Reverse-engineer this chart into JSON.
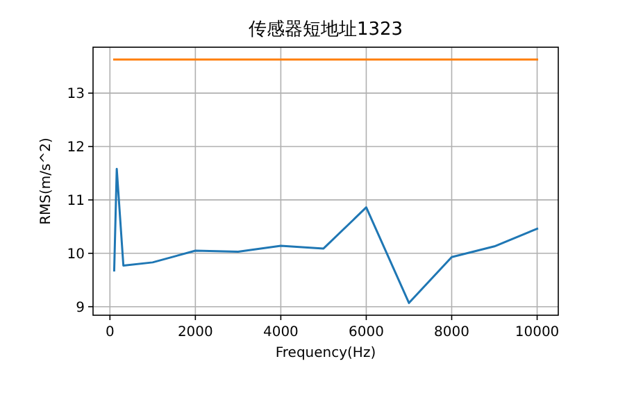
{
  "chart_data": {
    "type": "line",
    "title": "传感器短地址1323",
    "xlabel": "Frequency(Hz)",
    "ylabel": "RMS(m/s^2)",
    "x": [
      100,
      160,
      315,
      1000,
      2000,
      3000,
      4000,
      5000,
      6000,
      7000,
      8000,
      9000,
      10000
    ],
    "series": [
      {
        "color": "#1f77b4",
        "values": [
          9.68,
          11.58,
          9.77,
          9.83,
          10.05,
          10.03,
          10.14,
          10.09,
          10.86,
          9.07,
          9.93,
          10.13,
          10.46
        ]
      },
      {
        "color": "#ff7f0e",
        "x": [
          100,
          10000
        ],
        "values": [
          13.63,
          13.63
        ]
      }
    ],
    "xlim": [
      -395,
      10495
    ],
    "ylim": [
      8.84,
      13.86
    ],
    "xticks": [
      0,
      2000,
      4000,
      6000,
      8000,
      10000
    ],
    "yticks": [
      9,
      10,
      11,
      12,
      13
    ],
    "grid": true,
    "marker": "none",
    "line_style": "solid"
  }
}
